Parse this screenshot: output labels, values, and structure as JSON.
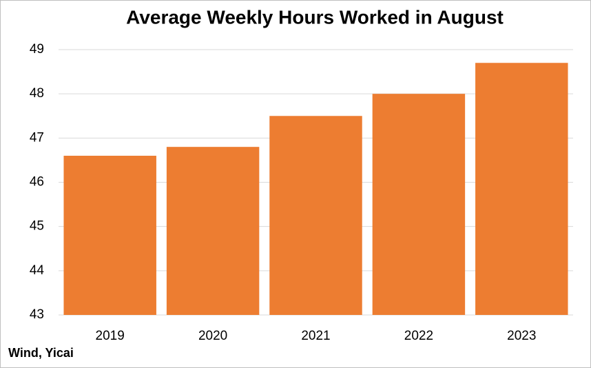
{
  "chart_data": {
    "type": "bar",
    "title": "Average Weekly Hours Worked in August",
    "categories": [
      "2019",
      "2020",
      "2021",
      "2022",
      "2023"
    ],
    "values": [
      46.6,
      46.8,
      47.5,
      48.0,
      48.7
    ],
    "color": "#ed7d31",
    "ylim": [
      43,
      49
    ],
    "yticks": [
      43,
      44,
      45,
      46,
      47,
      48,
      49
    ],
    "grid": true,
    "source": "Wind, Yicai"
  }
}
